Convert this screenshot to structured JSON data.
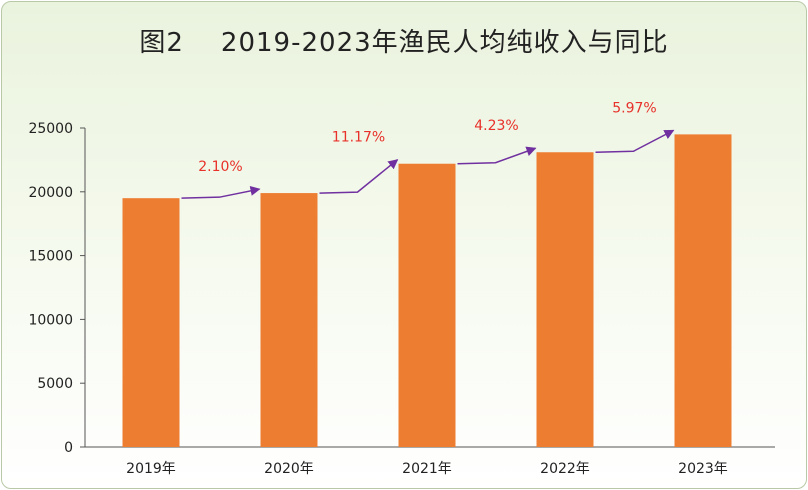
{
  "title": "图2    2019-2023年渔民人均纯收入与同比",
  "colors": {
    "bar": "#ed7d31",
    "arrow": "#7030a0",
    "growth_text": "#e8312a"
  },
  "chart_data": {
    "type": "bar",
    "title": "图2    2019-2023年渔民人均纯收入与同比",
    "categories": [
      "2019年",
      "2020年",
      "2021年",
      "2022年",
      "2023年"
    ],
    "values": [
      19500,
      19900,
      22200,
      23100,
      24500
    ],
    "growth_labels": [
      "2.10%",
      "11.17%",
      "4.23%",
      "5.97%"
    ],
    "ylim": [
      0,
      25000
    ],
    "yticks": [
      0,
      5000,
      10000,
      15000,
      20000,
      25000
    ],
    "grid": false,
    "legend": "none"
  }
}
